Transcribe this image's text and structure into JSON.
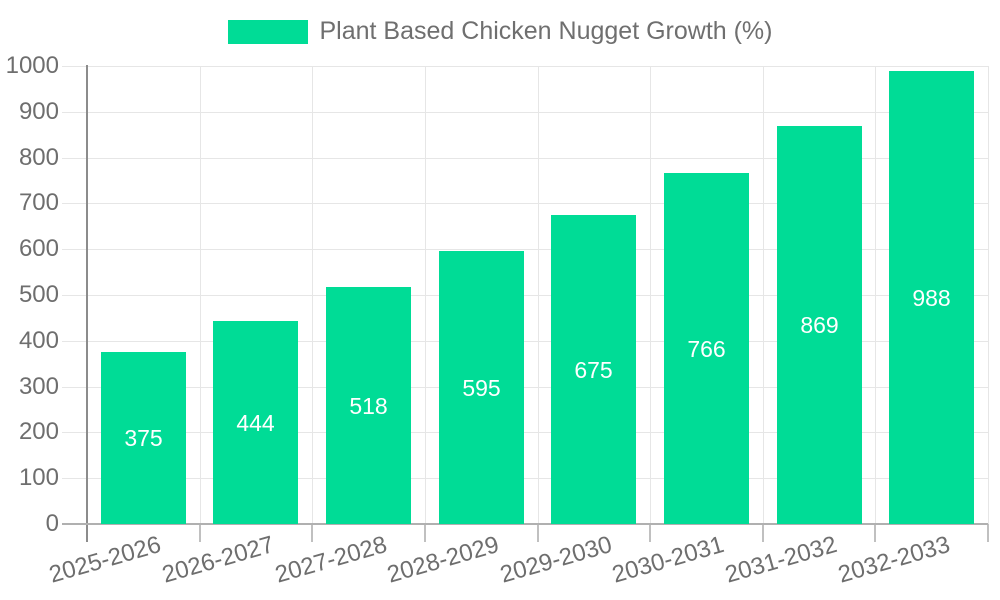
{
  "legend": {
    "series_label": "Plant Based Chicken Nugget Growth (%)"
  },
  "colors": {
    "bar": "#00DC96",
    "bar_value_label": "#FFFFFF",
    "axis_label": "#6E6E6E",
    "legend_text": "#6F6F6F",
    "gridline": "#E6E6E6",
    "y_axis_line": "#8C8C8C",
    "x_axis_line": "#B0B0B0",
    "x_tick": "#C0C0C0",
    "background": "#FFFFFF"
  },
  "chart_data": {
    "type": "bar",
    "title": "Plant Based Chicken Nugget Growth (%)",
    "categories": [
      "2025-2026",
      "2026-2027",
      "2027-2028",
      "2028-2029",
      "2029-2030",
      "2030-2031",
      "2031-2032",
      "2032-2033"
    ],
    "values": [
      375,
      444,
      518,
      595,
      675,
      766,
      869,
      988
    ],
    "xlabel": "",
    "ylabel": "",
    "ylim": [
      0,
      1000
    ],
    "ytick_step": 100,
    "y_tick_labels": [
      "0",
      "100",
      "200",
      "300",
      "400",
      "500",
      "600",
      "700",
      "800",
      "900",
      "1000"
    ],
    "grid": true,
    "legend_position": "top-center",
    "value_labels_position": "inside-center",
    "x_label_rotation_deg": -16
  }
}
